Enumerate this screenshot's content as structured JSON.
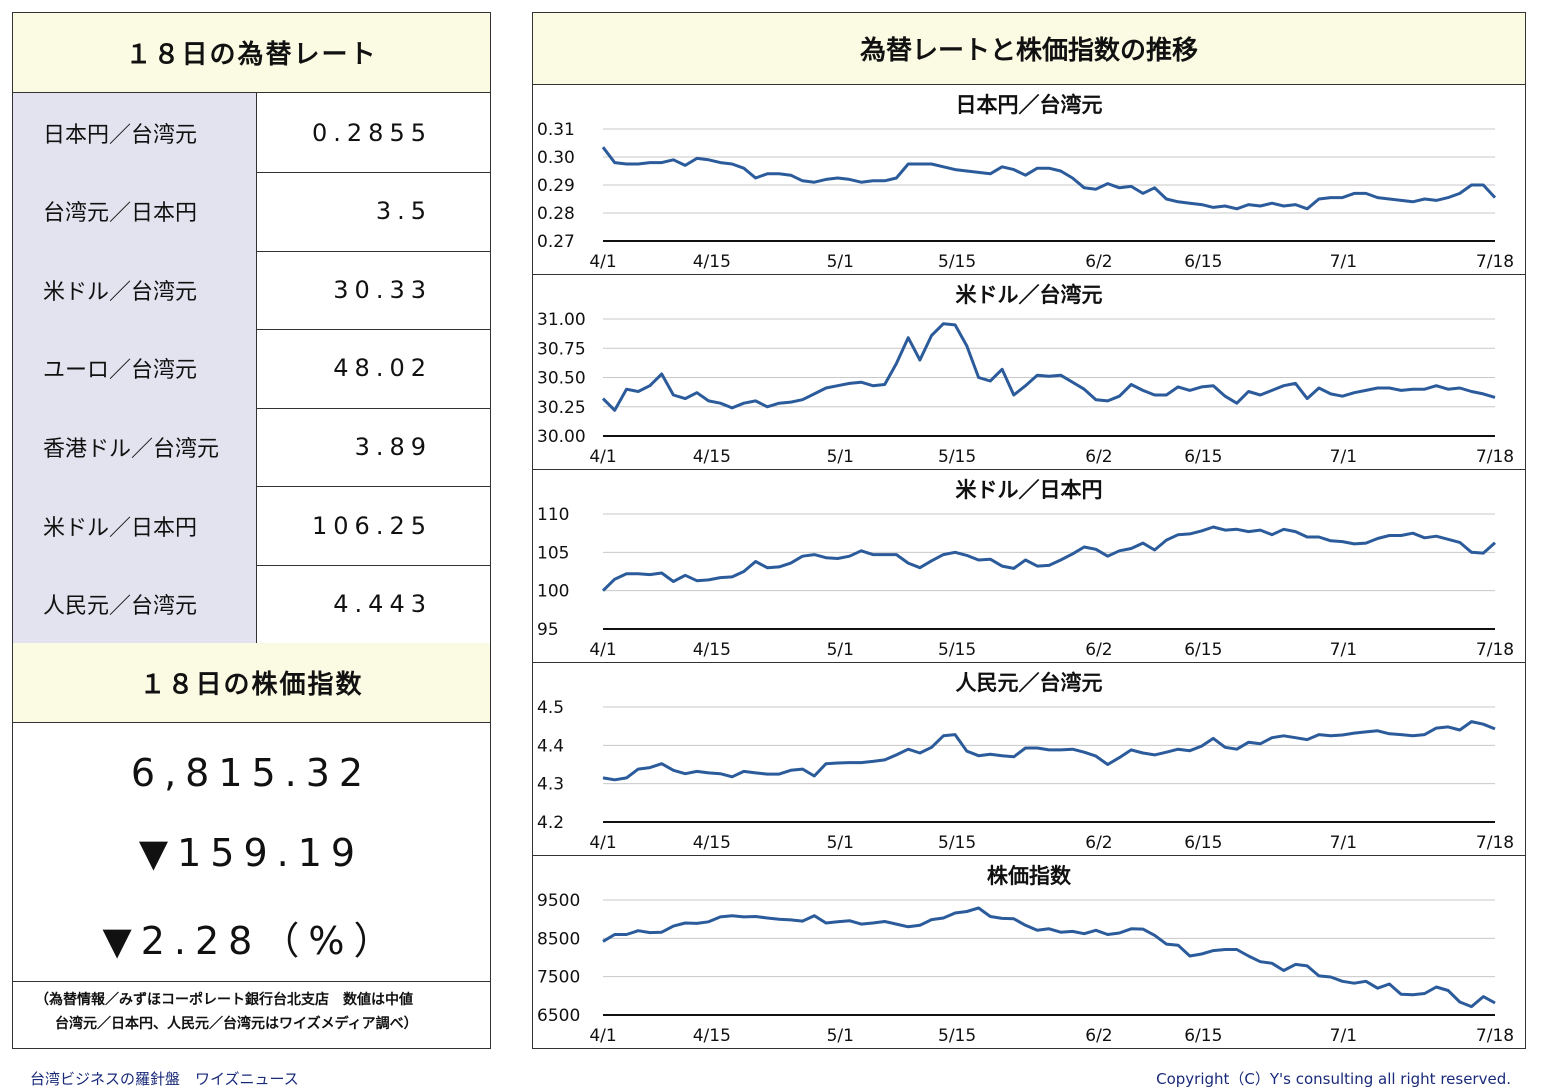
{
  "rates": {
    "title": "１８日の為替レート",
    "rows": [
      {
        "label": "日本円／台湾元",
        "value": "0.2855"
      },
      {
        "label": "台湾元／日本円",
        "value": "3.5"
      },
      {
        "label": "米ドル／台湾元",
        "value": "30.33"
      },
      {
        "label": "ユーロ／台湾元",
        "value": "48.02"
      },
      {
        "label": "香港ドル／台湾元",
        "value": "3.89"
      },
      {
        "label": "米ドル／日本円",
        "value": "106.25"
      },
      {
        "label": "人民元／台湾元",
        "value": "4.443"
      }
    ]
  },
  "stock": {
    "title": "１８日の株価指数",
    "value": "6,815.32",
    "change": "▼159.19",
    "change_pct": "▼2.28（%）"
  },
  "note": {
    "line1": "（為替情報／みずほコーポレート銀行台北支店　数値は中値",
    "line2": "台湾元／日本円、人民元／台湾元はワイズメディア調べ）"
  },
  "charts_title": "為替レートと株価指数の推移",
  "footer": {
    "left": "台湾ビジネスの羅針盤　ワイズニュース",
    "right": "Copyright（C）Y's consulting all right reserved."
  },
  "chart_data": [
    {
      "type": "line",
      "title": "日本円／台湾元",
      "x_labels": [
        "4/1",
        "4/15",
        "5/1",
        "5/15",
        "6/2",
        "6/15",
        "7/1",
        "7/18"
      ],
      "y_ticks": [
        "0.31",
        "0.30",
        "0.29",
        "0.28",
        "0.27"
      ],
      "ylim": [
        0.27,
        0.31
      ],
      "values": [
        0.3035,
        0.298,
        0.2975,
        0.2975,
        0.298,
        0.298,
        0.299,
        0.297,
        0.2995,
        0.299,
        0.298,
        0.2975,
        0.296,
        0.2925,
        0.294,
        0.294,
        0.2935,
        0.2915,
        0.291,
        0.292,
        0.2925,
        0.292,
        0.291,
        0.2915,
        0.2915,
        0.2925,
        0.2975,
        0.2975,
        0.2975,
        0.2965,
        0.2955,
        0.295,
        0.2945,
        0.294,
        0.2965,
        0.2955,
        0.2935,
        0.296,
        0.296,
        0.295,
        0.2925,
        0.289,
        0.2885,
        0.2905,
        0.289,
        0.2895,
        0.287,
        0.289,
        0.285,
        0.284,
        0.2835,
        0.283,
        0.282,
        0.2825,
        0.2815,
        0.283,
        0.2825,
        0.2835,
        0.2825,
        0.283,
        0.2815,
        0.285,
        0.2855,
        0.2855,
        0.287,
        0.287,
        0.2855,
        0.285,
        0.2845,
        0.284,
        0.285,
        0.2845,
        0.2855,
        0.287,
        0.29,
        0.29,
        0.2855
      ],
      "line_color": "#2b5b9a"
    },
    {
      "type": "line",
      "title": "米ドル／台湾元",
      "x_labels": [
        "4/1",
        "4/15",
        "5/1",
        "5/15",
        "6/2",
        "6/15",
        "7/1",
        "7/18"
      ],
      "y_ticks": [
        "31.00",
        "30.75",
        "30.50",
        "30.25",
        "30.00"
      ],
      "ylim": [
        30.0,
        31.0
      ],
      "values": [
        30.32,
        30.22,
        30.4,
        30.38,
        30.43,
        30.53,
        30.35,
        30.32,
        30.37,
        30.3,
        30.28,
        30.24,
        30.28,
        30.3,
        30.25,
        30.28,
        30.29,
        30.31,
        30.36,
        30.41,
        30.43,
        30.45,
        30.46,
        30.43,
        30.44,
        30.62,
        30.84,
        30.65,
        30.86,
        30.96,
        30.95,
        30.77,
        30.5,
        30.47,
        30.57,
        30.35,
        30.43,
        30.52,
        30.51,
        30.52,
        30.46,
        30.4,
        30.31,
        30.3,
        30.34,
        30.44,
        30.39,
        30.35,
        30.35,
        30.42,
        30.39,
        30.42,
        30.43,
        30.34,
        30.28,
        30.38,
        30.35,
        30.39,
        30.43,
        30.45,
        30.32,
        30.41,
        30.36,
        30.34,
        30.37,
        30.39,
        30.41,
        30.41,
        30.39,
        30.4,
        30.4,
        30.43,
        30.4,
        30.41,
        30.38,
        30.36,
        30.33
      ],
      "line_color": "#2b5b9a"
    },
    {
      "type": "line",
      "title": "米ドル／日本円",
      "x_labels": [
        "4/1",
        "4/15",
        "5/1",
        "5/15",
        "6/2",
        "6/15",
        "7/1",
        "7/18"
      ],
      "y_ticks": [
        "110",
        "105",
        "100",
        "95"
      ],
      "ylim": [
        95,
        110
      ],
      "values": [
        100.0,
        101.5,
        102.2,
        102.2,
        102.1,
        102.3,
        101.2,
        102.0,
        101.3,
        101.4,
        101.7,
        101.8,
        102.5,
        103.8,
        103.0,
        103.1,
        103.6,
        104.5,
        104.7,
        104.3,
        104.2,
        104.5,
        105.2,
        104.7,
        104.7,
        104.7,
        103.6,
        103.0,
        103.9,
        104.7,
        105.0,
        104.6,
        104.0,
        104.1,
        103.2,
        102.9,
        104.0,
        103.2,
        103.3,
        104.0,
        104.8,
        105.7,
        105.4,
        104.5,
        105.2,
        105.5,
        106.2,
        105.3,
        106.6,
        107.3,
        107.4,
        107.8,
        108.3,
        107.9,
        108.0,
        107.7,
        107.9,
        107.3,
        108.0,
        107.7,
        107.0,
        107.0,
        106.5,
        106.4,
        106.1,
        106.2,
        106.8,
        107.2,
        107.2,
        107.5,
        106.9,
        107.1,
        106.7,
        106.3,
        105.0,
        104.9,
        106.25
      ],
      "line_color": "#2b5b9a"
    },
    {
      "type": "line",
      "title": "人民元／台湾元",
      "x_labels": [
        "4/1",
        "4/15",
        "5/1",
        "5/15",
        "6/2",
        "6/15",
        "7/1",
        "7/18"
      ],
      "y_ticks": [
        "4.5",
        "4.4",
        "4.3",
        "4.2"
      ],
      "ylim": [
        4.2,
        4.5
      ],
      "values": [
        4.315,
        4.31,
        4.315,
        4.338,
        4.342,
        4.352,
        4.335,
        4.326,
        4.332,
        4.328,
        4.326,
        4.318,
        4.332,
        4.328,
        4.325,
        4.325,
        4.335,
        4.338,
        4.32,
        4.352,
        4.354,
        4.355,
        4.355,
        4.358,
        4.362,
        4.375,
        4.39,
        4.38,
        4.395,
        4.425,
        4.428,
        4.385,
        4.373,
        4.377,
        4.373,
        4.37,
        4.393,
        4.393,
        4.388,
        4.388,
        4.39,
        4.382,
        4.372,
        4.35,
        4.368,
        4.388,
        4.38,
        4.375,
        4.382,
        4.39,
        4.386,
        4.398,
        4.418,
        4.395,
        4.39,
        4.408,
        4.404,
        4.42,
        4.425,
        4.42,
        4.415,
        4.428,
        4.425,
        4.427,
        4.432,
        4.435,
        4.438,
        4.43,
        4.428,
        4.425,
        4.428,
        4.445,
        4.448,
        4.44,
        4.462,
        4.455,
        4.443
      ],
      "line_color": "#2b5b9a"
    },
    {
      "type": "line",
      "title": "株価指数",
      "x_labels": [
        "4/1",
        "4/15",
        "5/1",
        "5/15",
        "6/2",
        "6/15",
        "7/1",
        "7/18"
      ],
      "y_ticks": [
        "9500",
        "8500",
        "7500",
        "6500"
      ],
      "ylim": [
        6500,
        9500
      ],
      "values": [
        8420,
        8600,
        8600,
        8700,
        8650,
        8660,
        8820,
        8900,
        8890,
        8930,
        9060,
        9090,
        9060,
        9070,
        9030,
        9000,
        8980,
        8950,
        9090,
        8900,
        8930,
        8960,
        8870,
        8900,
        8940,
        8870,
        8800,
        8840,
        8990,
        9030,
        9160,
        9200,
        9290,
        9070,
        9020,
        9010,
        8840,
        8710,
        8750,
        8660,
        8680,
        8620,
        8710,
        8600,
        8640,
        8750,
        8740,
        8580,
        8350,
        8320,
        8040,
        8090,
        8180,
        8210,
        8210,
        8040,
        7890,
        7850,
        7660,
        7820,
        7780,
        7520,
        7490,
        7380,
        7330,
        7380,
        7200,
        7310,
        7040,
        7030,
        7060,
        7230,
        7140,
        6840,
        6720,
        6980,
        6815
      ],
      "line_color": "#2b5b9a"
    }
  ]
}
